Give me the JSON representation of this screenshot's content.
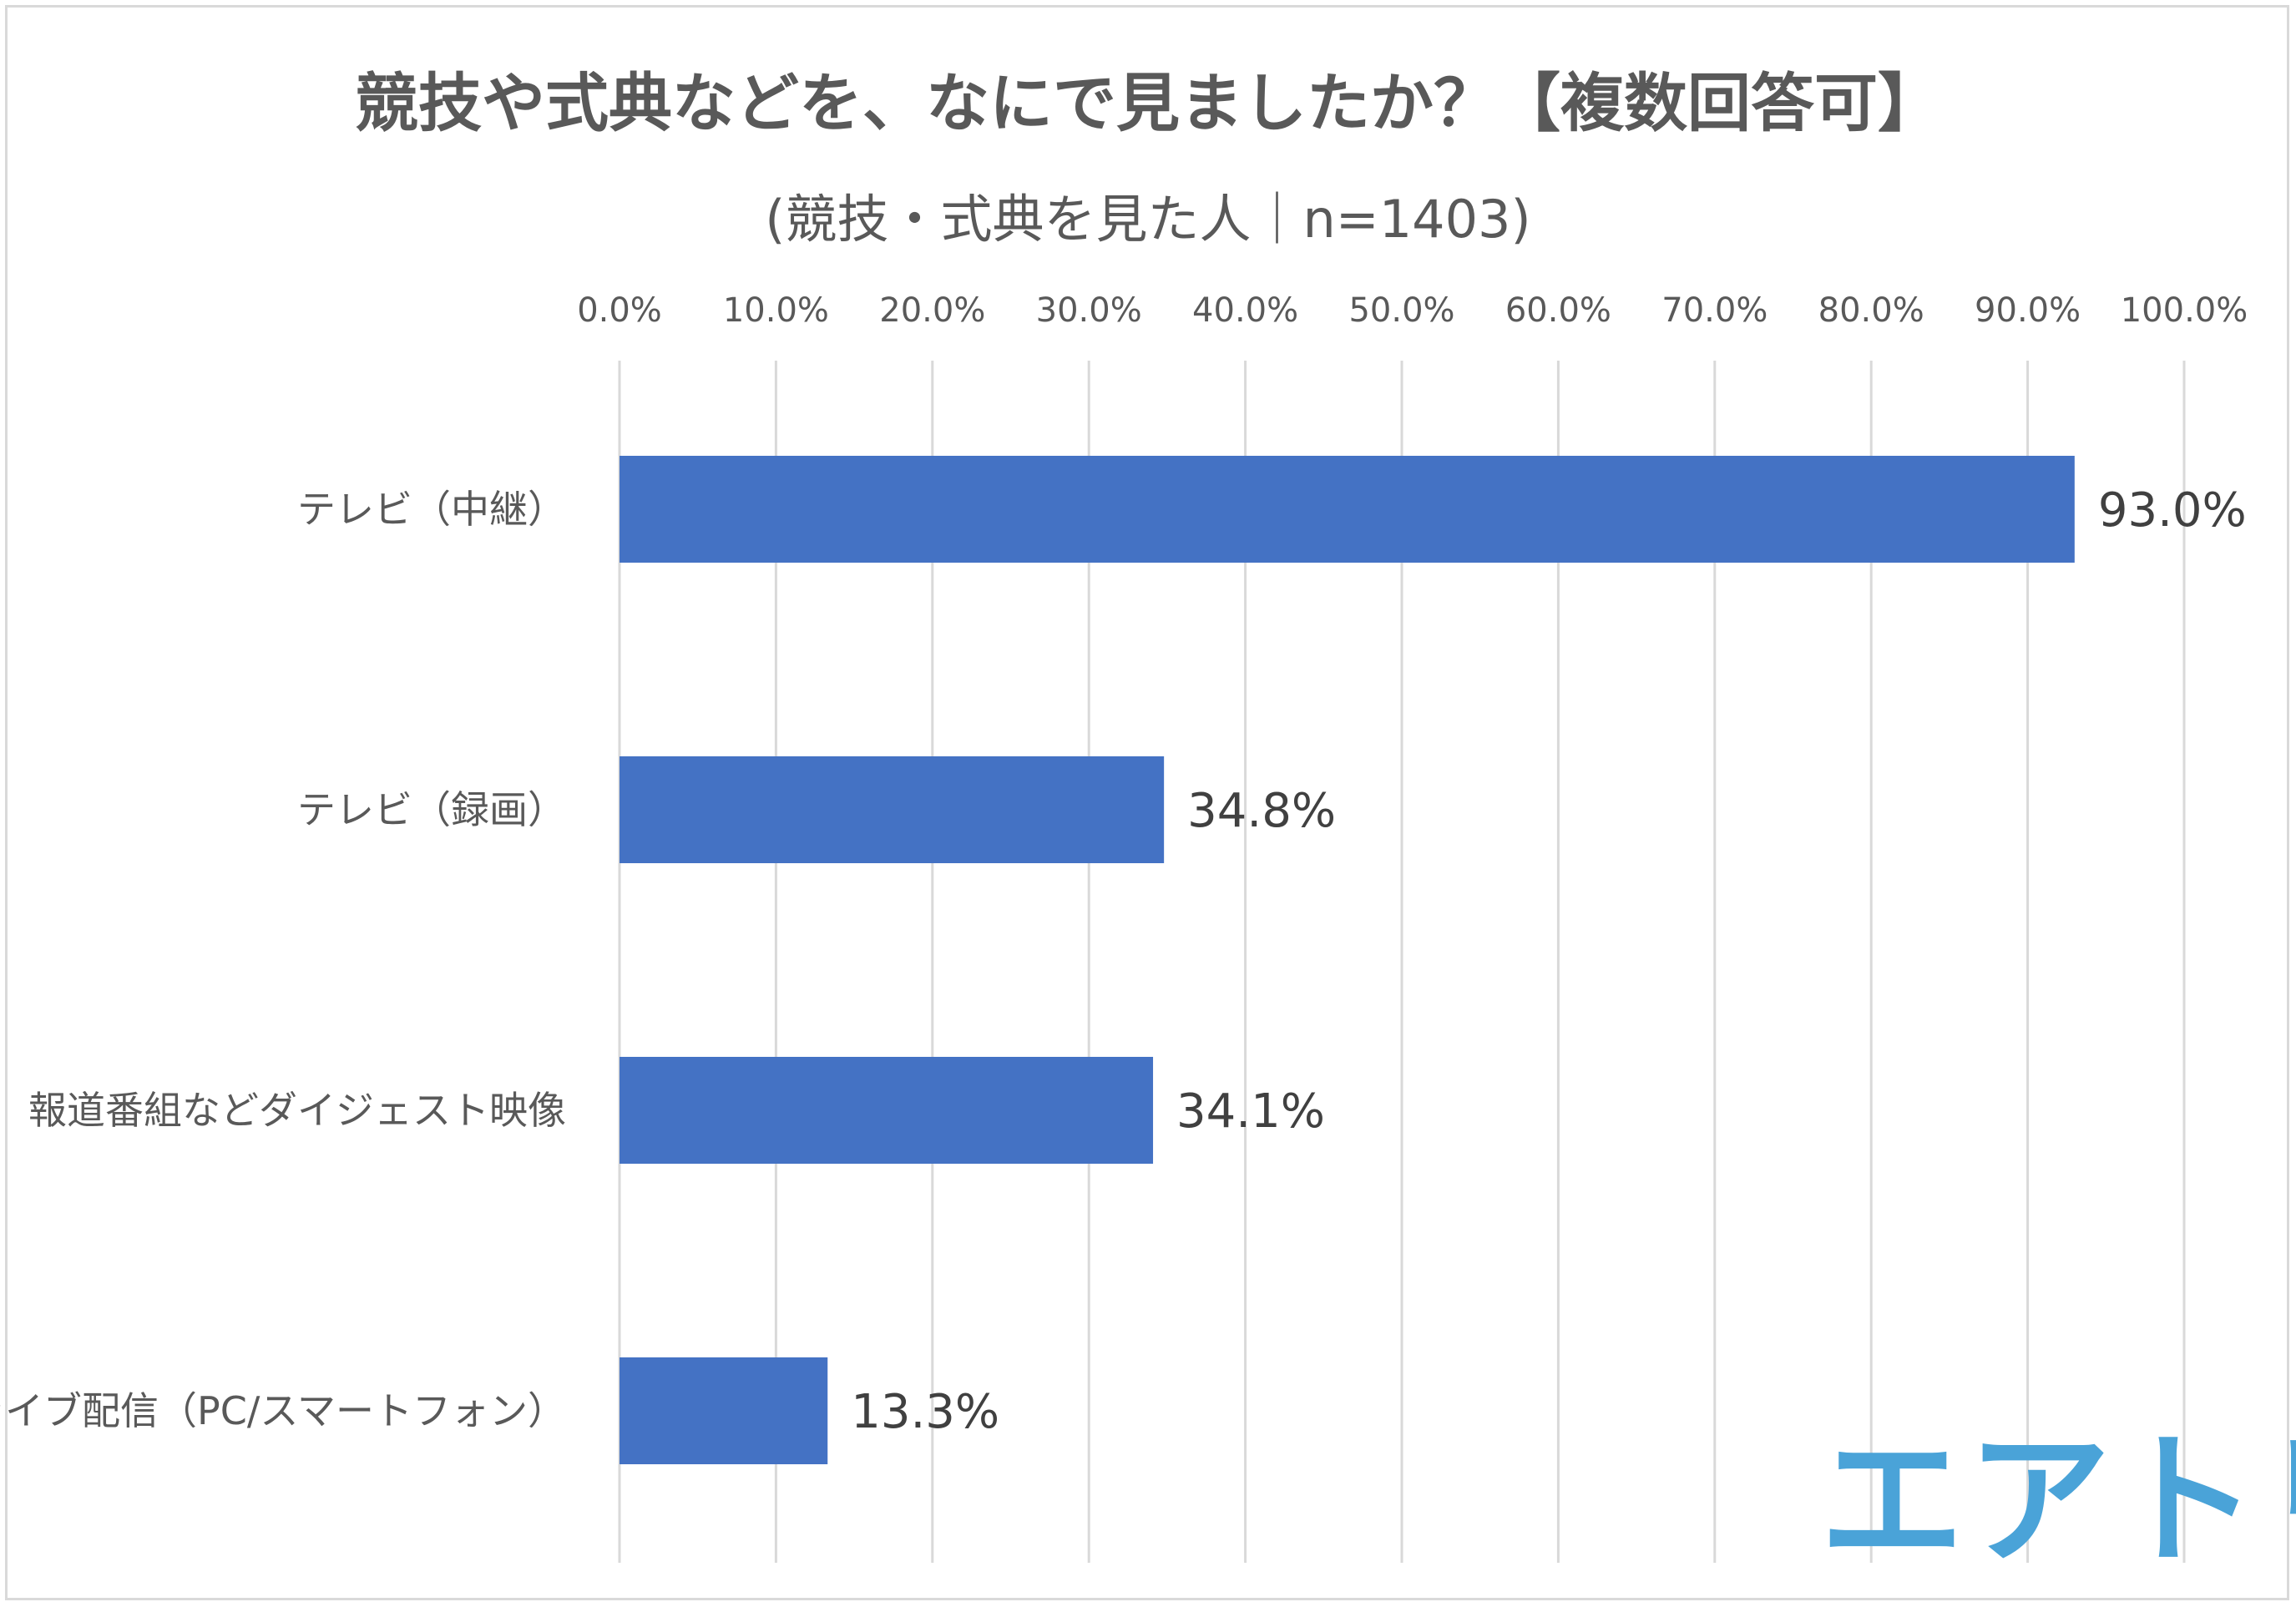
{
  "chart_data": {
    "type": "bar",
    "orientation": "horizontal",
    "title": "競技や式典などを、なにで見ましたか？【複数回答可】",
    "subtitle": "(競技・式典を見た人｜n=1403)",
    "categories": [
      "テレビ（中継）",
      "テレビ（録画）",
      "報道番組などダイジェスト映像",
      "ライブ配信（PC/スマートフォン）"
    ],
    "values": [
      93.0,
      34.8,
      34.1,
      13.3
    ],
    "data_labels": [
      "93.0%",
      "34.8%",
      "34.1%",
      "13.3%"
    ],
    "xlim": [
      0,
      100
    ],
    "xticks": [
      "0.0%",
      "10.0%",
      "20.0%",
      "30.0%",
      "40.0%",
      "50.0%",
      "60.0%",
      "70.0%",
      "80.0%",
      "90.0%",
      "100.0%"
    ],
    "xlabel": "",
    "ylabel": "",
    "grid": true,
    "axis_position": "top",
    "bar_color": "#4472c4",
    "grid_color": "#d9d9d9"
  },
  "brand": {
    "logo_text": "エアトリ",
    "color": "#4aa3d8"
  }
}
